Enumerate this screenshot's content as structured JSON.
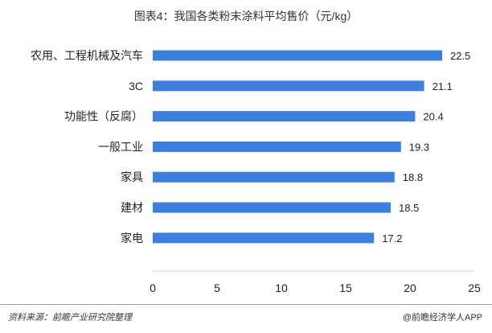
{
  "header": {
    "title": "图表4：我国各类粉末涂料平均售价（元/kg）"
  },
  "footer": {
    "source": "资料来源：前瞻产业研究院整理",
    "credit": "@前瞻经济学人APP"
  },
  "colors": {
    "bar": "#3d7fe0",
    "axis": "#cfcfcf"
  },
  "chart_data": {
    "type": "bar",
    "orientation": "horizontal",
    "title": "图表4：我国各类粉末涂料平均售价（元/kg）",
    "xlabel": "",
    "ylabel": "",
    "categories": [
      "农用、工程机械及汽车",
      "3C",
      "功能性（反腐）",
      "一般工业",
      "家具",
      "建材",
      "家电"
    ],
    "values": [
      22.5,
      21.1,
      20.4,
      19.3,
      18.8,
      18.5,
      17.2
    ],
    "xlim": [
      0,
      25
    ],
    "xticks": [
      0,
      5,
      10,
      15,
      20,
      25
    ],
    "grid": false,
    "data_labels": true
  }
}
